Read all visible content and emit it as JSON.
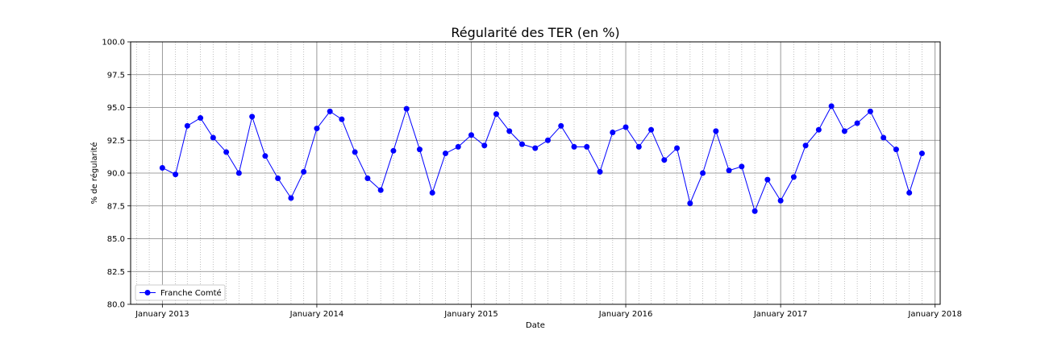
{
  "chart_data": {
    "type": "line",
    "title": "Régularité des TER (en %)",
    "xlabel": "Date",
    "ylabel": "% de régularité",
    "ylim": [
      80.0,
      100.0
    ],
    "xlim": [
      "2012-10-18",
      "2018-01-13"
    ],
    "yticks": [
      "80.0",
      "82.5",
      "85.0",
      "87.5",
      "90.0",
      "92.5",
      "95.0",
      "97.5",
      "100.0"
    ],
    "xticks": [
      {
        "date": "2013-01-01",
        "label": "January 2013"
      },
      {
        "date": "2014-01-01",
        "label": "January 2014"
      },
      {
        "date": "2015-01-01",
        "label": "January 2015"
      },
      {
        "date": "2016-01-01",
        "label": "January 2016"
      },
      {
        "date": "2017-01-01",
        "label": "January 2017"
      },
      {
        "date": "2018-01-01",
        "label": "January 2018"
      }
    ],
    "grid": {
      "major": true,
      "minor": true
    },
    "legend_position": "lower-left",
    "series": [
      {
        "name": "Franche Comté",
        "color": "#0000ff",
        "marker": "circle",
        "x": [
          "2013-01",
          "2013-02",
          "2013-03",
          "2013-04",
          "2013-05",
          "2013-06",
          "2013-07",
          "2013-08",
          "2013-09",
          "2013-10",
          "2013-11",
          "2013-12",
          "2014-01",
          "2014-02",
          "2014-03",
          "2014-04",
          "2014-05",
          "2014-06",
          "2014-07",
          "2014-08",
          "2014-09",
          "2014-10",
          "2014-11",
          "2014-12",
          "2015-01",
          "2015-02",
          "2015-03",
          "2015-04",
          "2015-05",
          "2015-06",
          "2015-07",
          "2015-08",
          "2015-09",
          "2015-10",
          "2015-11",
          "2015-12",
          "2016-01",
          "2016-02",
          "2016-03",
          "2016-04",
          "2016-05",
          "2016-06",
          "2016-07",
          "2016-08",
          "2016-09",
          "2016-10",
          "2016-11",
          "2016-12",
          "2017-01",
          "2017-02",
          "2017-03",
          "2017-04",
          "2017-05",
          "2017-06",
          "2017-07",
          "2017-08",
          "2017-09",
          "2017-10",
          "2017-11",
          "2017-12"
        ],
        "values": [
          90.4,
          89.9,
          93.6,
          94.2,
          92.7,
          91.6,
          90.0,
          94.3,
          91.3,
          89.6,
          88.1,
          90.1,
          93.4,
          94.7,
          94.1,
          91.6,
          89.6,
          88.7,
          91.7,
          94.9,
          91.8,
          88.5,
          91.5,
          92.0,
          92.9,
          92.1,
          94.5,
          93.2,
          92.2,
          91.9,
          92.5,
          93.6,
          92.0,
          92.0,
          90.1,
          93.1,
          93.5,
          92.0,
          93.3,
          91.0,
          91.9,
          87.7,
          90.0,
          93.2,
          90.2,
          90.5,
          87.1,
          89.5,
          87.9,
          89.7,
          92.1,
          93.3,
          95.1,
          93.2,
          93.8,
          94.7,
          92.7,
          91.8,
          88.5,
          91.5
        ]
      }
    ]
  }
}
